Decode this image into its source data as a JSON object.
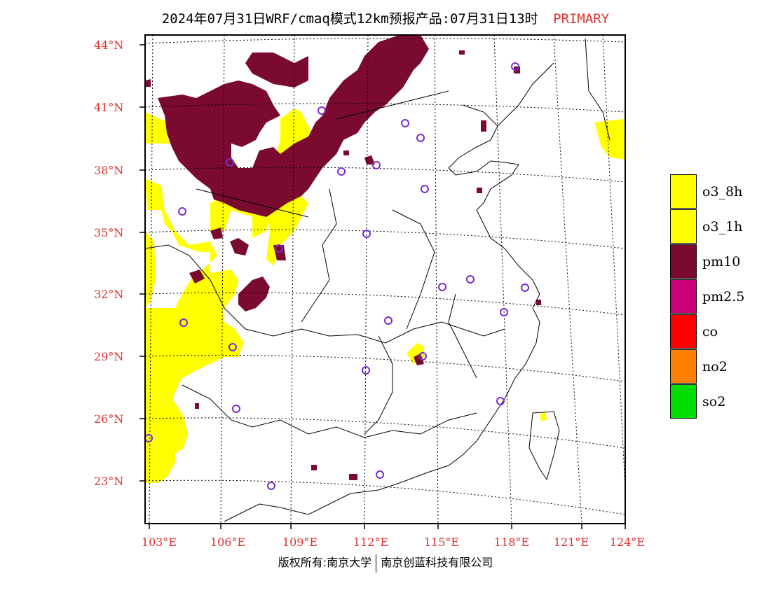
{
  "title": {
    "text": "2024年07月31日WRF/cmaq模式12km预报产品:07月31日13时",
    "tag": "PRIMARY"
  },
  "axes": {
    "lat_labels": [
      "44°N",
      "41°N",
      "38°N",
      "35°N",
      "32°N",
      "29°N",
      "26°N",
      "23°N"
    ],
    "lon_labels": [
      "103°E",
      "106°E",
      "109°E",
      "112°E",
      "115°E",
      "118°E",
      "121°E",
      "124°E"
    ]
  },
  "legend": [
    {
      "label": "o3_8h",
      "color": "#ffff00"
    },
    {
      "label": "o3_1h",
      "color": "#ffff00"
    },
    {
      "label": "pm10",
      "color": "#7a0b2e"
    },
    {
      "label": "pm2.5",
      "color": "#cc0077"
    },
    {
      "label": "co",
      "color": "#ff0000"
    },
    {
      "label": "no2",
      "color": "#ff7f00"
    },
    {
      "label": "so2",
      "color": "#00dd00"
    }
  ],
  "copyright": {
    "left": "版权所有:南京大学",
    "right": "南京创蓝科技有限公司"
  },
  "colors": {
    "label_red": "#e03030",
    "station_marker": "#7a2bd0"
  }
}
